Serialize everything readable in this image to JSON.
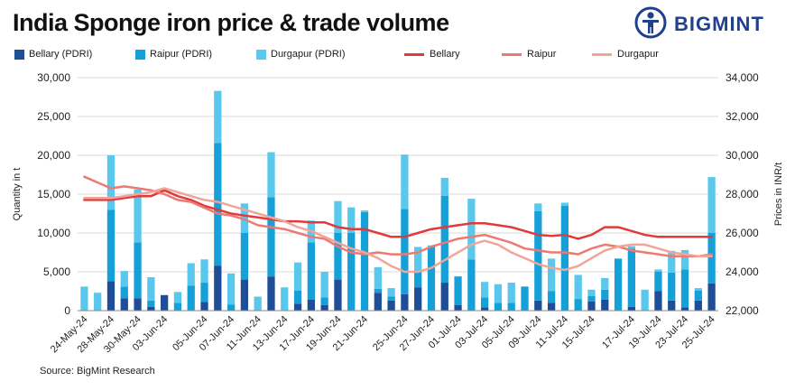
{
  "title": "India Sponge iron price & trade volume",
  "brand": {
    "name": "BIGMINT",
    "color": "#1f3f8f",
    "icon": "bigmint-person-icon"
  },
  "source": "Source: BigMint Research",
  "legend": [
    {
      "label": "Bellary (PDRI)",
      "kind": "box",
      "color": "#1f4e96"
    },
    {
      "label": "Raipur (PDRI)",
      "kind": "box",
      "color": "#16a0d8"
    },
    {
      "label": "Durgapur (PDRI)",
      "kind": "box",
      "color": "#5ac8ec"
    },
    {
      "label": "Bellary",
      "kind": "line",
      "color": "#e03a3a"
    },
    {
      "label": "Raipur",
      "kind": "line",
      "color": "#ec7a72"
    },
    {
      "label": "Durgapur",
      "kind": "line",
      "color": "#efa59a"
    }
  ],
  "chart_data": {
    "type": "bar",
    "stacked": true,
    "xlabel": "",
    "ylabel": "Quantity in t",
    "y2label": "Prices in INR/t",
    "ylim": [
      0,
      30000
    ],
    "y2lim": [
      22000,
      34000
    ],
    "yticks": [
      "0",
      "5,000",
      "10,000",
      "15,000",
      "20,000",
      "25,000",
      "30,000"
    ],
    "y2ticks": [
      "22,000",
      "24,000",
      "26,000",
      "28,000",
      "30,000",
      "32,000",
      "34,000"
    ],
    "x_tick_labels": [
      "24-May-24",
      "28-May-24",
      "30-May-24",
      "03-Jun-24",
      "05-Jun-24",
      "07-Jun-24",
      "11-Jun-24",
      "13-Jun-24",
      "17-Jun-24",
      "19-Jun-24",
      "21-Jun-24",
      "25-Jun-24",
      "27-Jun-24",
      "01-Jul-24",
      "03-Jul-24",
      "05-Jul-24",
      "09-Jul-24",
      "11-Jul-24",
      "15-Jul-24",
      "17-Jul-24",
      "19-Jul-24",
      "23-Jul-24",
      "25-Jul-24"
    ],
    "grid": true,
    "legend_position": "top",
    "bar_series": [
      {
        "name": "Bellary (PDRI)",
        "color": "#1f4e96",
        "values": [
          0,
          0,
          3800,
          1600,
          1600,
          500,
          2000,
          0,
          0,
          1100,
          5800,
          0,
          4000,
          0,
          4400,
          0,
          900,
          1400,
          700,
          4000,
          0,
          0,
          2300,
          1300,
          2100,
          3000,
          0,
          3600,
          700,
          0,
          400,
          0,
          0,
          0,
          1300,
          1000,
          0,
          0,
          1200,
          1400,
          0,
          500,
          0,
          2500,
          1300,
          400,
          1300,
          3500
        ]
      },
      {
        "name": "Raipur (PDRI)",
        "color": "#16a0d8",
        "values": [
          0,
          0,
          9200,
          1500,
          7200,
          800,
          0,
          1000,
          3200,
          2500,
          15800,
          800,
          6000,
          0,
          10200,
          0,
          1700,
          7400,
          1000,
          6000,
          10000,
          12700,
          500,
          500,
          11000,
          2200,
          8200,
          11200,
          3700,
          6600,
          1300,
          1000,
          1000,
          3100,
          11500,
          1500,
          13500,
          1500,
          700,
          1300,
          6700,
          7500,
          0,
          2500,
          3600,
          4900,
          1300,
          6500
        ]
      },
      {
        "name": "Durgapur (PDRI)",
        "color": "#5ac8ec",
        "values": [
          3100,
          2300,
          7000,
          2000,
          6800,
          3000,
          0,
          1400,
          2900,
          3000,
          6700,
          4000,
          3800,
          1800,
          5800,
          3000,
          3600,
          2800,
          3300,
          4100,
          3300,
          200,
          2800,
          1100,
          7000,
          3000,
          200,
          2300,
          0,
          7800,
          2000,
          2400,
          2600,
          0,
          1000,
          4200,
          400,
          3100,
          800,
          1500,
          0,
          300,
          2700,
          300,
          2800,
          2500,
          300,
          7200
        ]
      }
    ],
    "line_series": [
      {
        "name": "Bellary",
        "color": "#e03a3a",
        "width": 2.5,
        "values": [
          27700,
          27700,
          27700,
          27800,
          27900,
          27900,
          28200,
          27900,
          27700,
          27400,
          27200,
          27000,
          26900,
          26800,
          26700,
          26600,
          26600,
          26550,
          26550,
          26300,
          26200,
          26200,
          26000,
          25800,
          25800,
          26000,
          26200,
          26300,
          26400,
          26500,
          26500,
          26400,
          26300,
          26100,
          25900,
          25850,
          25900,
          25700,
          25900,
          26300,
          26300,
          26100,
          25900,
          25800,
          25800,
          25800,
          25800,
          25800
        ]
      },
      {
        "name": "Raipur",
        "color": "#ec7a72",
        "width": 2.5,
        "values": [
          28900,
          28600,
          28300,
          28400,
          28300,
          28200,
          28000,
          27700,
          27600,
          27300,
          27000,
          26900,
          26700,
          26400,
          26300,
          26200,
          26000,
          25800,
          25700,
          25300,
          25000,
          24900,
          25000,
          24900,
          24900,
          25000,
          25300,
          25500,
          25700,
          25800,
          25900,
          25700,
          25500,
          25200,
          25100,
          25000,
          25000,
          24900,
          25200,
          25400,
          25300,
          25100,
          25000,
          24900,
          24800,
          24800,
          24800,
          24900
        ]
      },
      {
        "name": "Durgapur",
        "color": "#efa59a",
        "width": 2.5,
        "values": [
          27800,
          27800,
          27800,
          27900,
          28000,
          28100,
          28300,
          28100,
          27900,
          27700,
          27600,
          27400,
          27200,
          27000,
          26800,
          26600,
          26300,
          26100,
          25800,
          25500,
          25200,
          25000,
          24700,
          24300,
          24000,
          24000,
          24200,
          24600,
          25000,
          25400,
          25600,
          25400,
          25000,
          24700,
          24400,
          24200,
          24100,
          24300,
          24700,
          25100,
          25300,
          25400,
          25400,
          25200,
          25000,
          24900,
          24800,
          24800
        ]
      }
    ]
  }
}
